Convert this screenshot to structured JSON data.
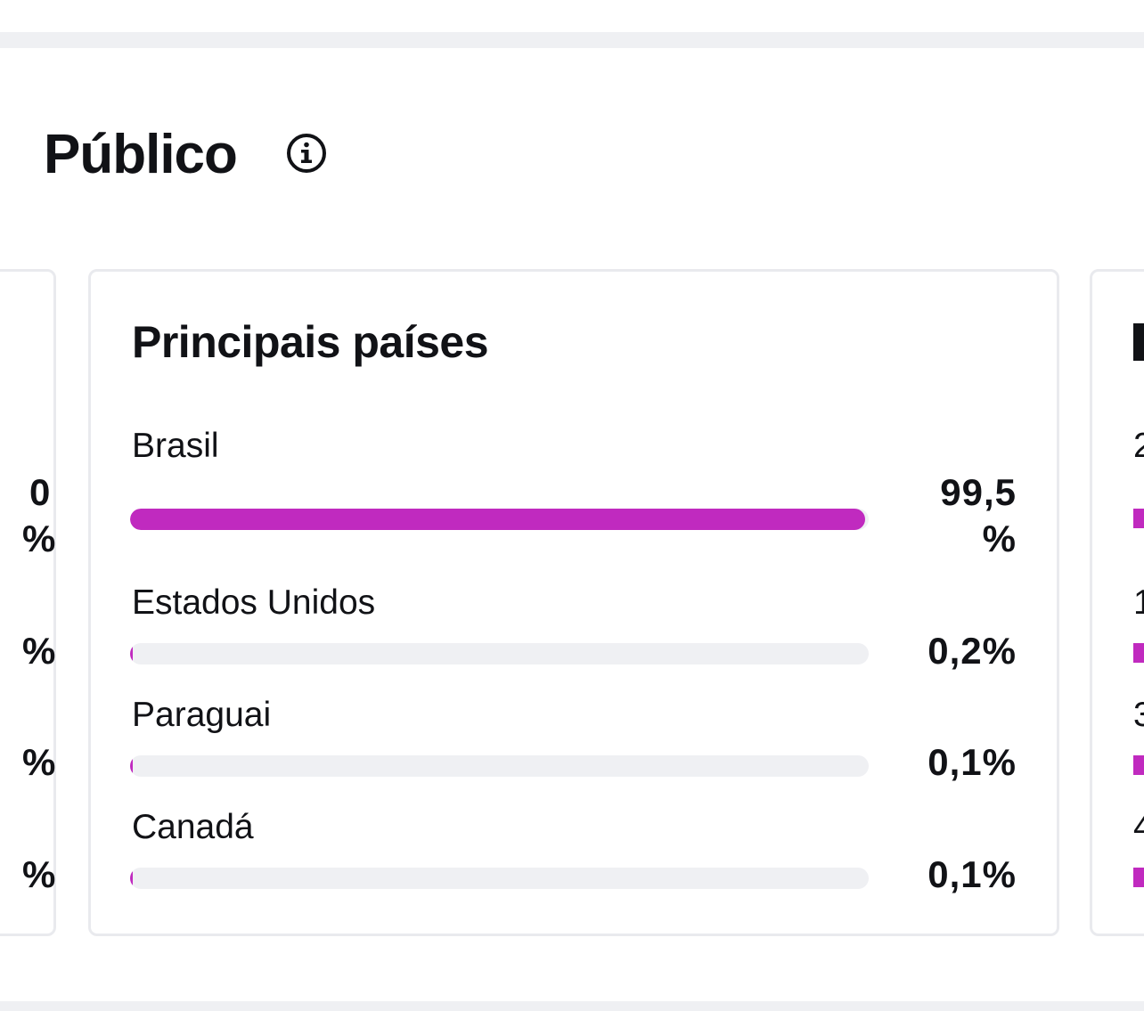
{
  "section": {
    "title": "Público",
    "info_icon": "info-circle-icon"
  },
  "top_countries": {
    "title": "Principais países",
    "accent_color": "#c02abf",
    "track_color": "#eff0f3",
    "rows": [
      {
        "country": "Brasil",
        "percent_text": "99,5 %",
        "percent_value": 99.5
      },
      {
        "country": "Estados Unidos",
        "percent_text": "0,2%",
        "percent_value": 0.2
      },
      {
        "country": "Paraguai",
        "percent_text": "0,1%",
        "percent_value": 0.1
      },
      {
        "country": "Canadá",
        "percent_text": "0,1%",
        "percent_value": 0.1
      }
    ]
  },
  "left_card_fragments": [
    "0",
    "%",
    "%",
    "%",
    "%"
  ],
  "right_card_fragments": [
    "2",
    "1",
    "3",
    "4"
  ]
}
